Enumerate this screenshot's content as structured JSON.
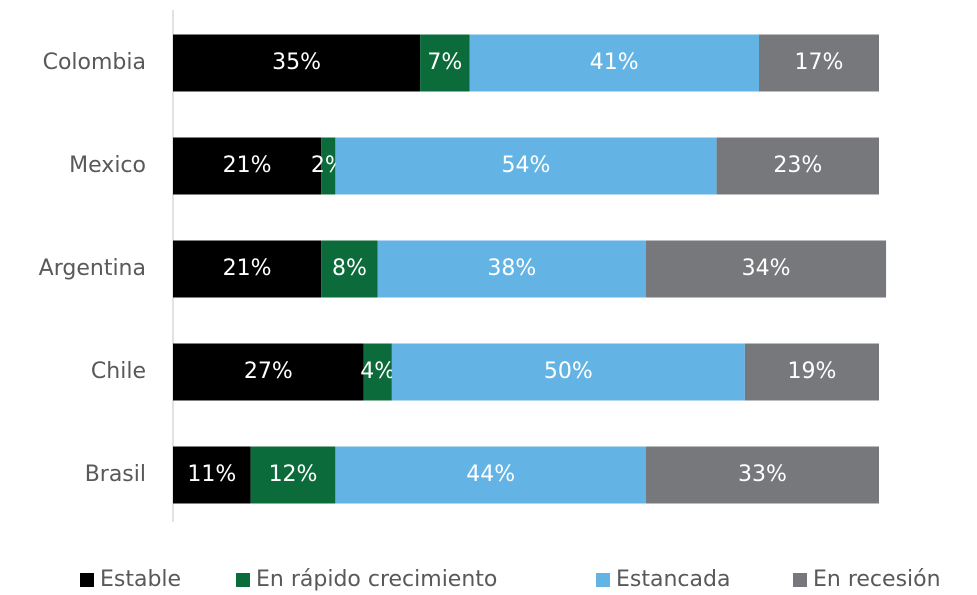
{
  "chart_data": {
    "type": "stacked-bar-horizontal",
    "categories": [
      "Colombia",
      "Mexico",
      "Argentina",
      "Chile",
      "Brasil"
    ],
    "xlim": [
      0,
      100
    ],
    "legend": "bottom",
    "series": [
      {
        "name": "Estable",
        "color": "#000000",
        "values": [
          35,
          21,
          21,
          27,
          11
        ],
        "value_labels": [
          "35%",
          "21%",
          "21%",
          "27%",
          "11%"
        ]
      },
      {
        "name": "En rápido crecimiento",
        "color": "#0b6b3a",
        "values": [
          7,
          2,
          8,
          4,
          12
        ],
        "value_labels": [
          "7%",
          "2%",
          "8%",
          "4%",
          "12%"
        ]
      },
      {
        "name": "Estancada",
        "color": "#63b4e4",
        "values": [
          41,
          54,
          38,
          50,
          44
        ],
        "value_labels": [
          "41%",
          "54%",
          "38%",
          "50%",
          "44%"
        ]
      },
      {
        "name": "En recesión",
        "color": "#76787b",
        "values": [
          17,
          23,
          34,
          19,
          33
        ],
        "value_labels": [
          "17%",
          "23%",
          "34%",
          "19%",
          "33%"
        ]
      }
    ]
  }
}
